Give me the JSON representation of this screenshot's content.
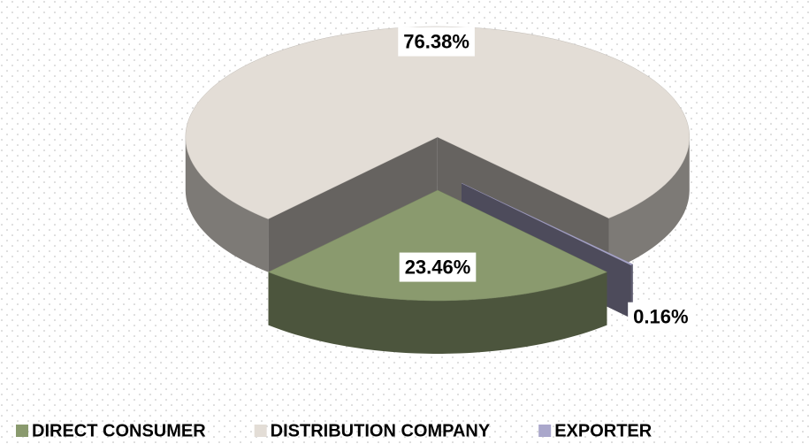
{
  "chart_data": {
    "type": "pie3d",
    "categories": [
      "DIRECT CONSUMER",
      "DISTRIBUTION COMPANY",
      "EXPORTER"
    ],
    "values": [
      23.46,
      76.38,
      0.16
    ],
    "value_labels": [
      "23.46%",
      "76.38%",
      "0.16%"
    ],
    "colors": [
      "#8a9a6e",
      "#e3ddd6",
      "#aaa7cb"
    ],
    "legend": "bottom"
  }
}
